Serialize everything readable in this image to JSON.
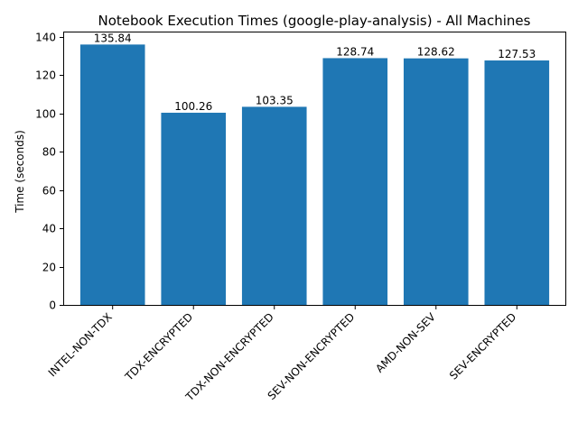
{
  "chart_data": {
    "type": "bar",
    "title": "Notebook Execution Times (google-play-analysis) - All Machines",
    "xlabel": "",
    "ylabel": "Time (seconds)",
    "categories": [
      "INTEL-NON-TDX",
      "TDX-ENCRYPTED",
      "TDX-NON-ENCRYPTED",
      "SEV-NON-ENCRYPTED",
      "AMD-NON-SEV",
      "SEV-ENCRYPTED"
    ],
    "values": [
      135.84,
      100.26,
      103.35,
      128.74,
      128.62,
      127.53
    ],
    "data_labels": [
      "135.84",
      "100.26",
      "103.35",
      "128.74",
      "128.62",
      "127.53"
    ],
    "ylim": [
      0,
      142.6
    ],
    "yticks": [
      0,
      20,
      40,
      60,
      80,
      100,
      120,
      140
    ],
    "ytick_labels": [
      "0",
      "20",
      "40",
      "60",
      "80",
      "100",
      "120",
      "140"
    ],
    "grid": false,
    "bar_color": "#1f77b4"
  }
}
